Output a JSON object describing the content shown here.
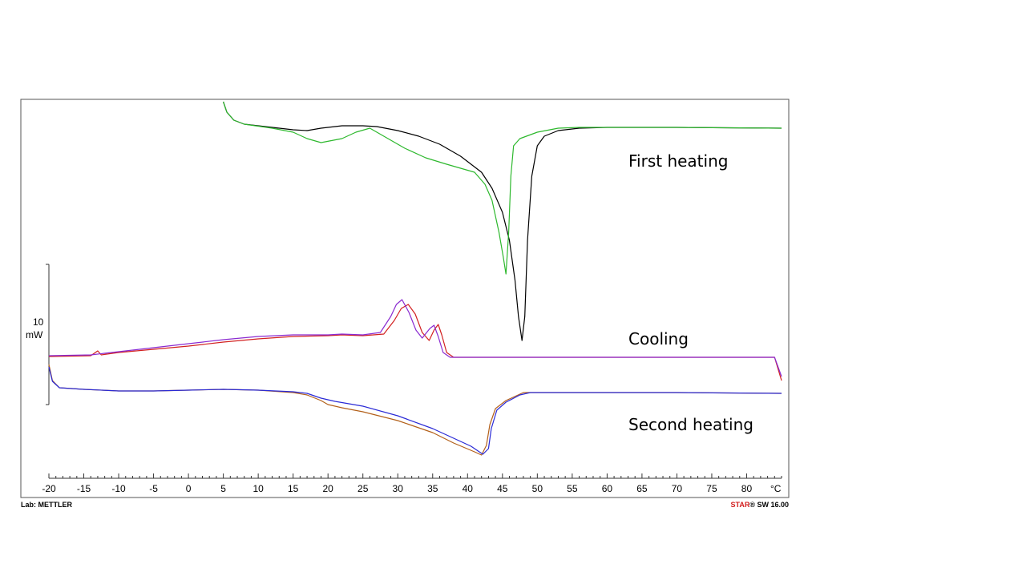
{
  "chart_data": {
    "type": "line",
    "xlabel": "",
    "ylabel": "",
    "x_unit": "°C",
    "xlim": [
      -20,
      85
    ],
    "x_ticks": [
      -20,
      -15,
      -10,
      -5,
      0,
      5,
      10,
      15,
      20,
      25,
      30,
      35,
      40,
      45,
      50,
      55,
      60,
      65,
      70,
      75,
      80
    ],
    "y_unit": "mW",
    "y_scale_bar": {
      "value": "10",
      "unit": "mW"
    },
    "grid": false,
    "legend": "none",
    "annotations": [
      "First heating",
      "Cooling",
      "Second heating"
    ],
    "footer_left": "Lab: METTLER",
    "footer_right_brand": "STAR",
    "footer_right_rest": "® SW 16.00",
    "series": [
      {
        "color": "#000000",
        "points": [
          [
            5,
            127
          ],
          [
            5.5,
            140
          ],
          [
            6.5,
            150
          ],
          [
            8,
            155
          ],
          [
            12,
            159
          ],
          [
            15,
            162
          ],
          [
            17,
            163
          ],
          [
            19,
            160
          ],
          [
            22,
            157
          ],
          [
            25,
            157
          ],
          [
            27,
            158
          ],
          [
            30,
            163
          ],
          [
            33,
            170
          ],
          [
            36,
            180
          ],
          [
            39,
            195
          ],
          [
            42,
            215
          ],
          [
            43.5,
            235
          ],
          [
            45,
            265
          ],
          [
            46,
            300
          ],
          [
            46.8,
            350
          ],
          [
            47.3,
            395
          ],
          [
            47.8,
            425
          ],
          [
            48.2,
            395
          ],
          [
            48.6,
            300
          ],
          [
            49.2,
            220
          ],
          [
            50,
            182
          ],
          [
            51,
            170
          ],
          [
            53,
            163
          ],
          [
            56,
            160
          ],
          [
            60,
            159
          ],
          [
            70,
            159
          ],
          [
            85,
            160
          ]
        ]
      },
      {
        "color": "#2db82d",
        "points": [
          [
            5,
            127
          ],
          [
            5.5,
            140
          ],
          [
            6.5,
            150
          ],
          [
            8,
            155
          ],
          [
            12,
            160
          ],
          [
            15,
            165
          ],
          [
            17,
            173
          ],
          [
            19,
            178
          ],
          [
            22,
            173
          ],
          [
            24,
            165
          ],
          [
            26,
            160
          ],
          [
            28,
            170
          ],
          [
            31,
            185
          ],
          [
            34,
            197
          ],
          [
            37,
            205
          ],
          [
            39,
            210
          ],
          [
            41,
            215
          ],
          [
            42.5,
            230
          ],
          [
            43.5,
            250
          ],
          [
            44.5,
            290
          ],
          [
            45.1,
            320
          ],
          [
            45.5,
            342
          ],
          [
            45.9,
            290
          ],
          [
            46.2,
            220
          ],
          [
            46.6,
            182
          ],
          [
            47.5,
            173
          ],
          [
            50,
            165
          ],
          [
            53,
            160
          ],
          [
            56,
            159
          ],
          [
            60,
            159
          ],
          [
            70,
            159
          ],
          [
            85,
            160
          ]
        ]
      },
      {
        "color": "#d22020",
        "points": [
          [
            -20,
            445
          ],
          [
            -14,
            444
          ],
          [
            -13,
            438
          ],
          [
            -12.5,
            443
          ],
          [
            -10,
            440
          ],
          [
            -5,
            436
          ],
          [
            0,
            432
          ],
          [
            5,
            427
          ],
          [
            10,
            423
          ],
          [
            15,
            420
          ],
          [
            20,
            419
          ],
          [
            22,
            418
          ],
          [
            25,
            419
          ],
          [
            28,
            417
          ],
          [
            29.5,
            400
          ],
          [
            30.5,
            385
          ],
          [
            31.5,
            380
          ],
          [
            32.5,
            392
          ],
          [
            33.5,
            415
          ],
          [
            34.5,
            425
          ],
          [
            35.2,
            412
          ],
          [
            35.8,
            405
          ],
          [
            36.3,
            418
          ],
          [
            37,
            440
          ],
          [
            38,
            446
          ],
          [
            45,
            446
          ],
          [
            60,
            446
          ],
          [
            70,
            446
          ],
          [
            80,
            446
          ],
          [
            84,
            446
          ],
          [
            85,
            475
          ]
        ]
      },
      {
        "color": "#8a2ad0",
        "points": [
          [
            -20,
            444
          ],
          [
            -14,
            443
          ],
          [
            -10,
            439
          ],
          [
            -5,
            434
          ],
          [
            0,
            429
          ],
          [
            5,
            424
          ],
          [
            10,
            420
          ],
          [
            15,
            418
          ],
          [
            20,
            418
          ],
          [
            22,
            417
          ],
          [
            25,
            418
          ],
          [
            27.5,
            415
          ],
          [
            29,
            395
          ],
          [
            29.8,
            380
          ],
          [
            30.6,
            374
          ],
          [
            31.6,
            390
          ],
          [
            32.6,
            412
          ],
          [
            33.5,
            422
          ],
          [
            34.6,
            410
          ],
          [
            35.2,
            406
          ],
          [
            35.8,
            420
          ],
          [
            36.5,
            440
          ],
          [
            37.5,
            446
          ],
          [
            45,
            446
          ],
          [
            60,
            446
          ],
          [
            70,
            446
          ],
          [
            80,
            446
          ],
          [
            84,
            446
          ],
          [
            85,
            470
          ]
        ]
      },
      {
        "color": "#b3601a",
        "points": [
          [
            -20,
            455
          ],
          [
            -19.5,
            475
          ],
          [
            -18.5,
            484
          ],
          [
            -15,
            486
          ],
          [
            -10,
            488
          ],
          [
            -5,
            488
          ],
          [
            0,
            487
          ],
          [
            5,
            486
          ],
          [
            10,
            487
          ],
          [
            15,
            490
          ],
          [
            17,
            493
          ],
          [
            19,
            500
          ],
          [
            20,
            505
          ],
          [
            22,
            509
          ],
          [
            25,
            514
          ],
          [
            30,
            525
          ],
          [
            35,
            540
          ],
          [
            38,
            553
          ],
          [
            41,
            564
          ],
          [
            42,
            568
          ],
          [
            42.7,
            556
          ],
          [
            43.2,
            530
          ],
          [
            44,
            510
          ],
          [
            45.5,
            500
          ],
          [
            47,
            494
          ],
          [
            48,
            490
          ],
          [
            50,
            490
          ],
          [
            60,
            490
          ],
          [
            70,
            490
          ],
          [
            85,
            491
          ]
        ]
      },
      {
        "color": "#2a2ad6",
        "points": [
          [
            -20,
            458
          ],
          [
            -19.5,
            476
          ],
          [
            -18.5,
            484
          ],
          [
            -15,
            486
          ],
          [
            -10,
            488
          ],
          [
            -5,
            488
          ],
          [
            0,
            487
          ],
          [
            5,
            486
          ],
          [
            10,
            487
          ],
          [
            15,
            489
          ],
          [
            17,
            491
          ],
          [
            19,
            497
          ],
          [
            21,
            501
          ],
          [
            25,
            507
          ],
          [
            30,
            519
          ],
          [
            35,
            535
          ],
          [
            38,
            547
          ],
          [
            40.5,
            557
          ],
          [
            42.2,
            567
          ],
          [
            43,
            560
          ],
          [
            43.4,
            535
          ],
          [
            44.2,
            512
          ],
          [
            45.5,
            502
          ],
          [
            47.5,
            493
          ],
          [
            49,
            490
          ],
          [
            50,
            490
          ],
          [
            60,
            490
          ],
          [
            70,
            490
          ],
          [
            85,
            491
          ]
        ]
      }
    ]
  }
}
